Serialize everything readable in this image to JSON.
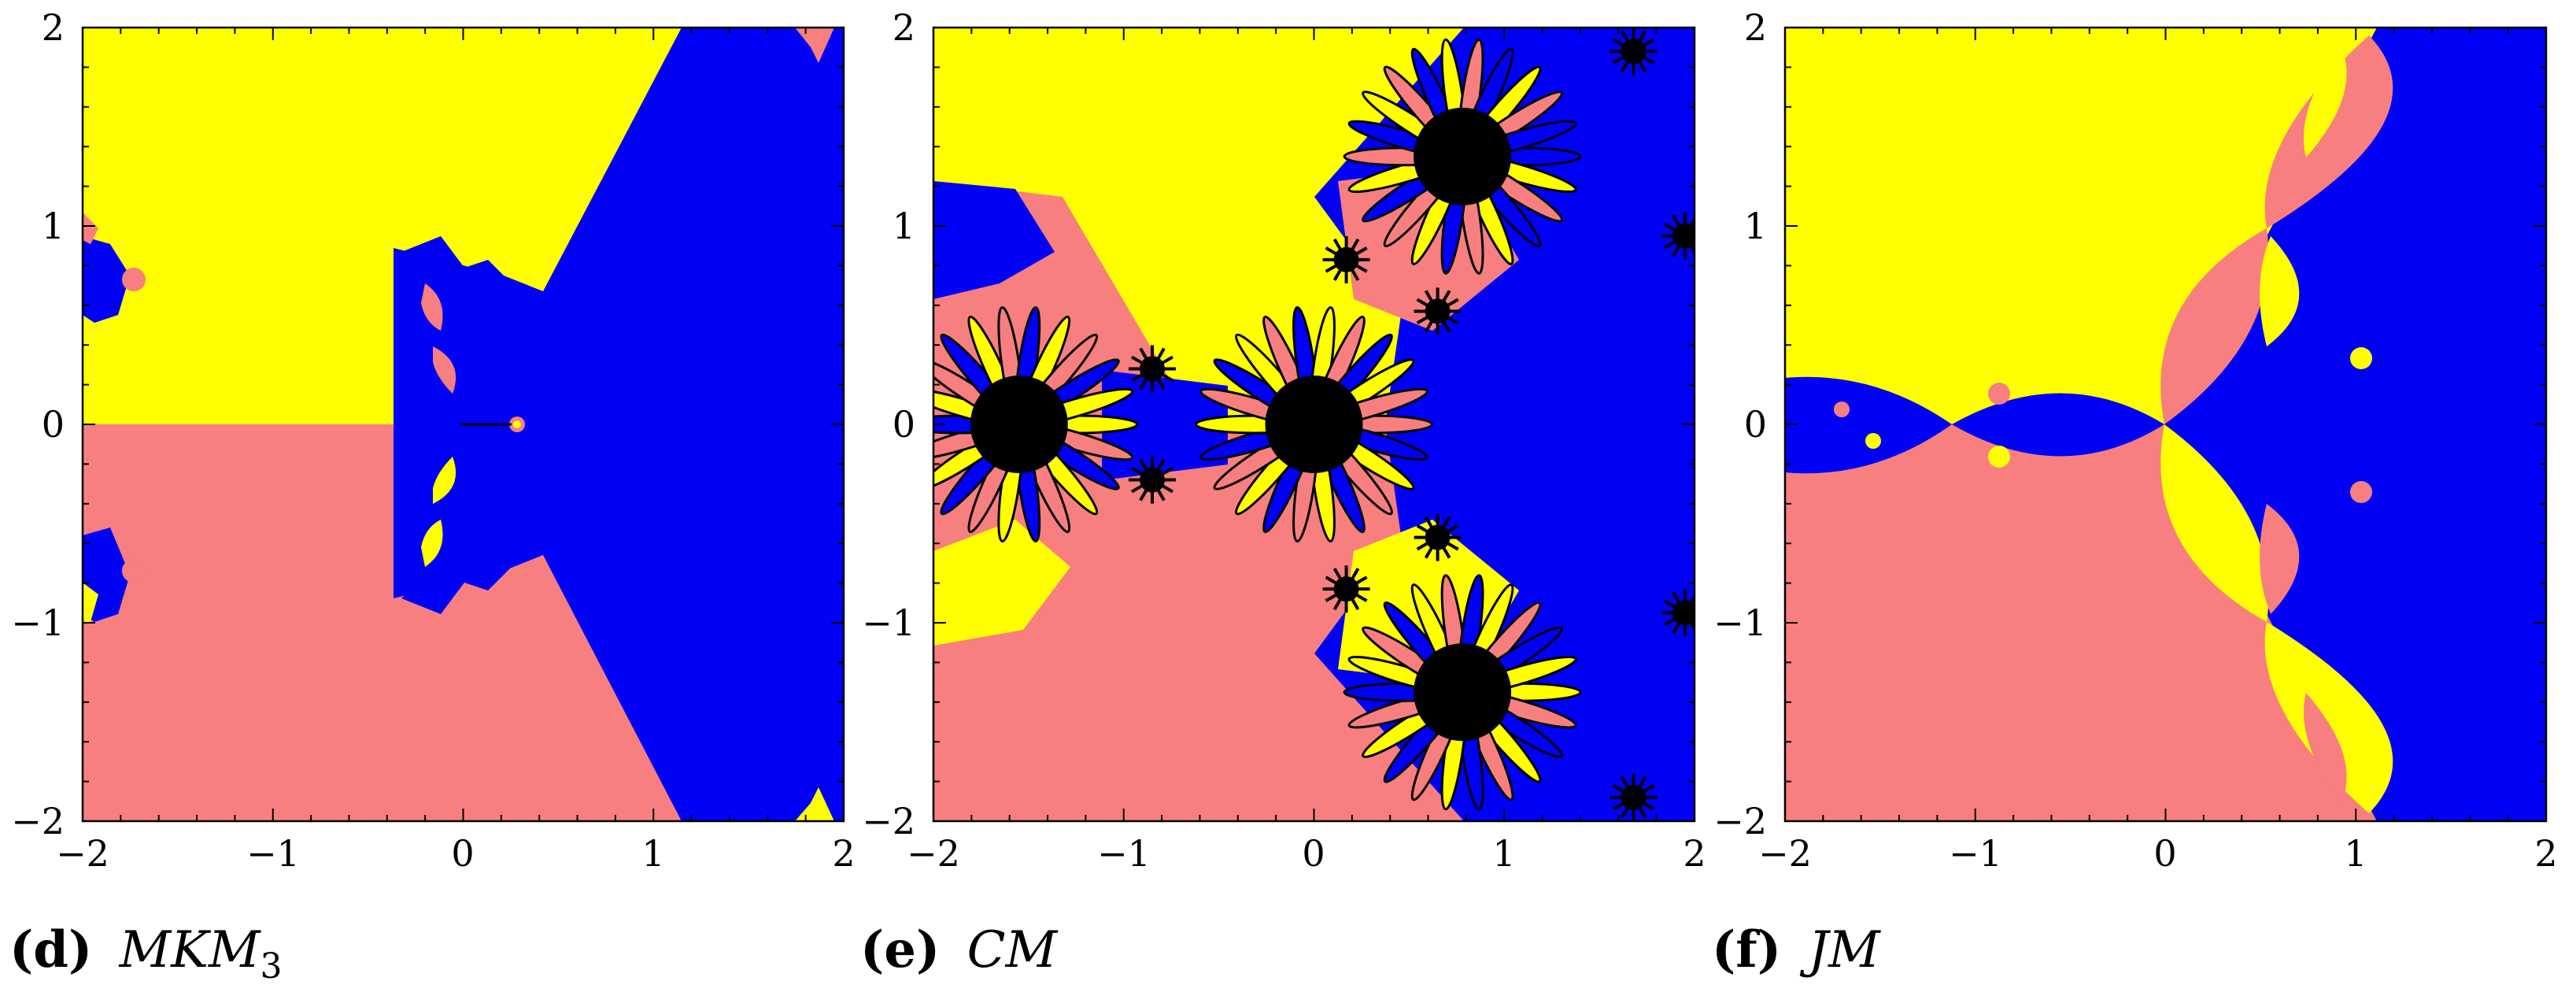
{
  "colors": {
    "yellow": "#ffff00",
    "salmon": "#f87f7f",
    "blue": "#0000f5",
    "black": "#000000"
  },
  "panels": [
    {
      "caption_letter": "(d)",
      "caption_method": "MKM",
      "caption_sub": "3",
      "x_ticks": [
        "−2",
        "−1",
        "0",
        "1",
        "2"
      ],
      "y_ticks": [
        "2",
        "1",
        "0",
        "−1",
        "−2"
      ]
    },
    {
      "caption_letter": "(e)",
      "caption_method": "CM",
      "caption_sub": "",
      "x_ticks": [
        "−2",
        "−1",
        "0",
        "1",
        "2"
      ],
      "y_ticks": [
        "2",
        "1",
        "0",
        "−1",
        "−2"
      ]
    },
    {
      "caption_letter": "(f)",
      "caption_method": "JM",
      "caption_sub": "",
      "x_ticks": [
        "−2",
        "−1",
        "0",
        "1",
        "2"
      ],
      "y_ticks": [
        "2",
        "1",
        "0",
        "−1",
        "−2"
      ]
    }
  ],
  "chart_data": [
    {
      "type": "heatmap",
      "xlim": [
        -2,
        2
      ],
      "ylim": [
        -2,
        2
      ],
      "x_ticks": [
        -2,
        -1,
        0,
        1,
        2
      ],
      "y_ticks": [
        -2,
        -1,
        0,
        1,
        2
      ],
      "basin_colors": [
        "yellow",
        "salmon",
        "blue"
      ]
    },
    {
      "type": "heatmap",
      "xlim": [
        -2,
        2
      ],
      "ylim": [
        -2,
        2
      ],
      "x_ticks": [
        -2,
        -1,
        0,
        1,
        2
      ],
      "y_ticks": [
        -2,
        -1,
        0,
        1,
        2
      ],
      "basin_colors": [
        "yellow",
        "salmon",
        "blue",
        "black"
      ],
      "black_flower_centers": [
        [
          -1.55,
          0
        ],
        [
          0,
          0
        ],
        [
          0.78,
          1.35
        ],
        [
          0.78,
          -1.35
        ]
      ]
    },
    {
      "type": "heatmap",
      "xlim": [
        -2,
        2
      ],
      "ylim": [
        -2,
        2
      ],
      "x_ticks": [
        -2,
        -1,
        0,
        1,
        2
      ],
      "y_ticks": [
        -2,
        -1,
        0,
        1,
        2
      ],
      "basin_colors": [
        "yellow",
        "salmon",
        "blue"
      ]
    }
  ]
}
